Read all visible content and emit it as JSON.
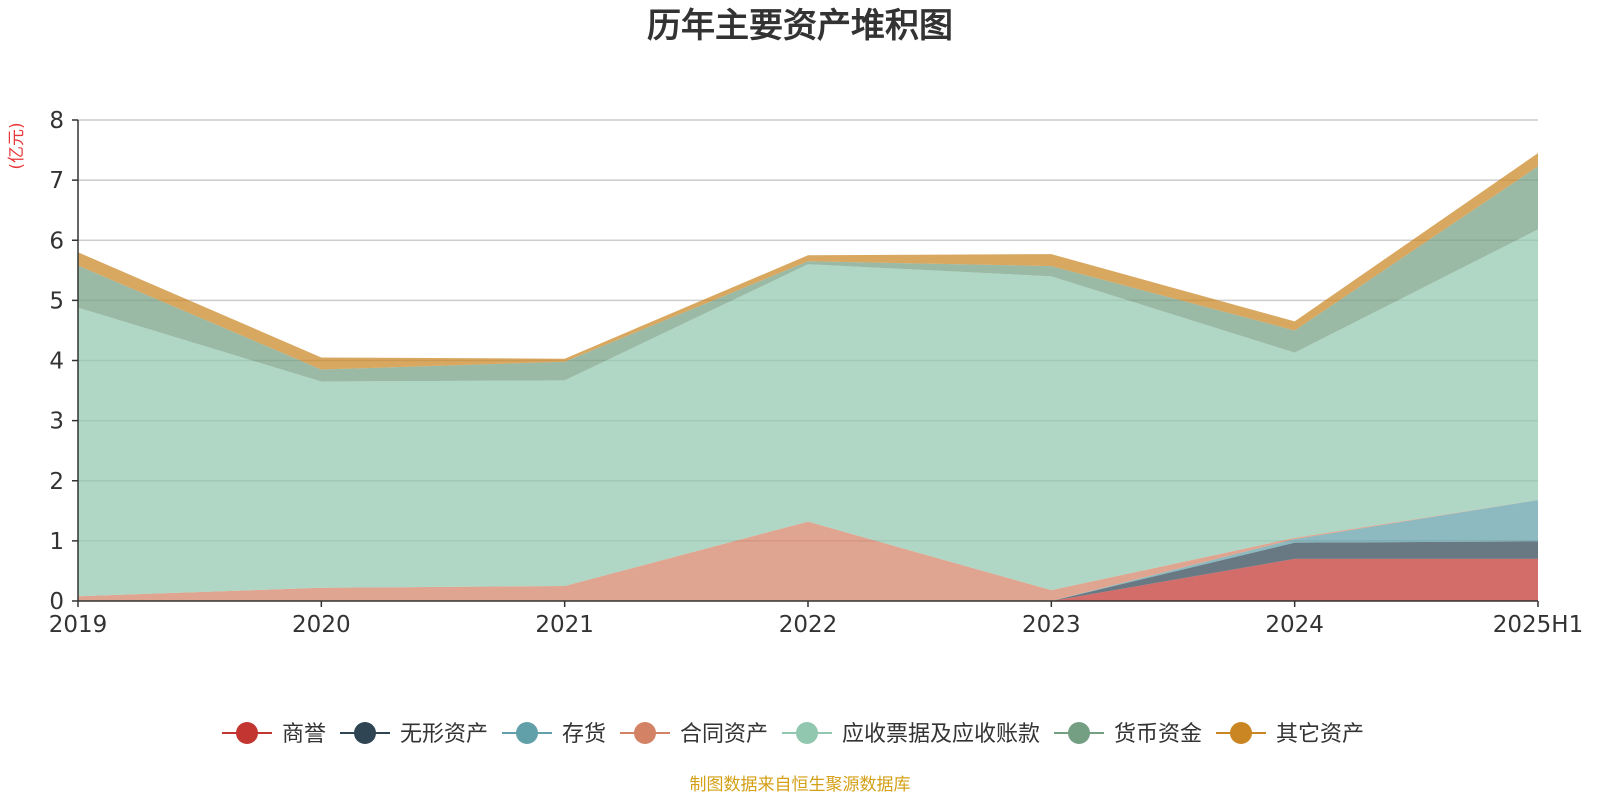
{
  "chart_data": {
    "type": "area",
    "stacked": true,
    "title": "历年主要资产堆积图",
    "ylabel": "(亿元)",
    "ylim": [
      0,
      8
    ],
    "yticks": [
      0,
      1,
      2,
      3,
      4,
      5,
      6,
      7,
      8
    ],
    "grid": true,
    "legend_position": "bottom",
    "categories": [
      "2019",
      "2020",
      "2021",
      "2022",
      "2023",
      "2024",
      "2025H1"
    ],
    "series": [
      {
        "name": "商誉",
        "color": "#c23531",
        "values": [
          0,
          0,
          0,
          0,
          0,
          0.7,
          0.7
        ]
      },
      {
        "name": "无形资产",
        "color": "#2f4554",
        "values": [
          0,
          0,
          0,
          0,
          0,
          0.27,
          0.29
        ]
      },
      {
        "name": "存货",
        "color": "#61a0a8",
        "values": [
          0,
          0,
          0,
          0,
          0,
          0.06,
          0.69
        ]
      },
      {
        "name": "合同资产",
        "color": "#d48265",
        "values": [
          0.08,
          0.22,
          0.25,
          1.32,
          0.18,
          0.02,
          0.0
        ]
      },
      {
        "name": "应收票据及应收账款",
        "color": "#91c7ae",
        "values": [
          4.8,
          3.43,
          3.42,
          4.28,
          5.22,
          3.08,
          4.5
        ]
      },
      {
        "name": "货币资金",
        "color": "#749f83",
        "values": [
          0.7,
          0.2,
          0.31,
          0.05,
          0.17,
          0.37,
          1.05
        ]
      },
      {
        "name": "其它资产",
        "color": "#ca8622",
        "values": [
          0.22,
          0.2,
          0.05,
          0.1,
          0.2,
          0.15,
          0.22
        ]
      }
    ],
    "source_note": "制图数据来自恒生聚源数据库"
  }
}
